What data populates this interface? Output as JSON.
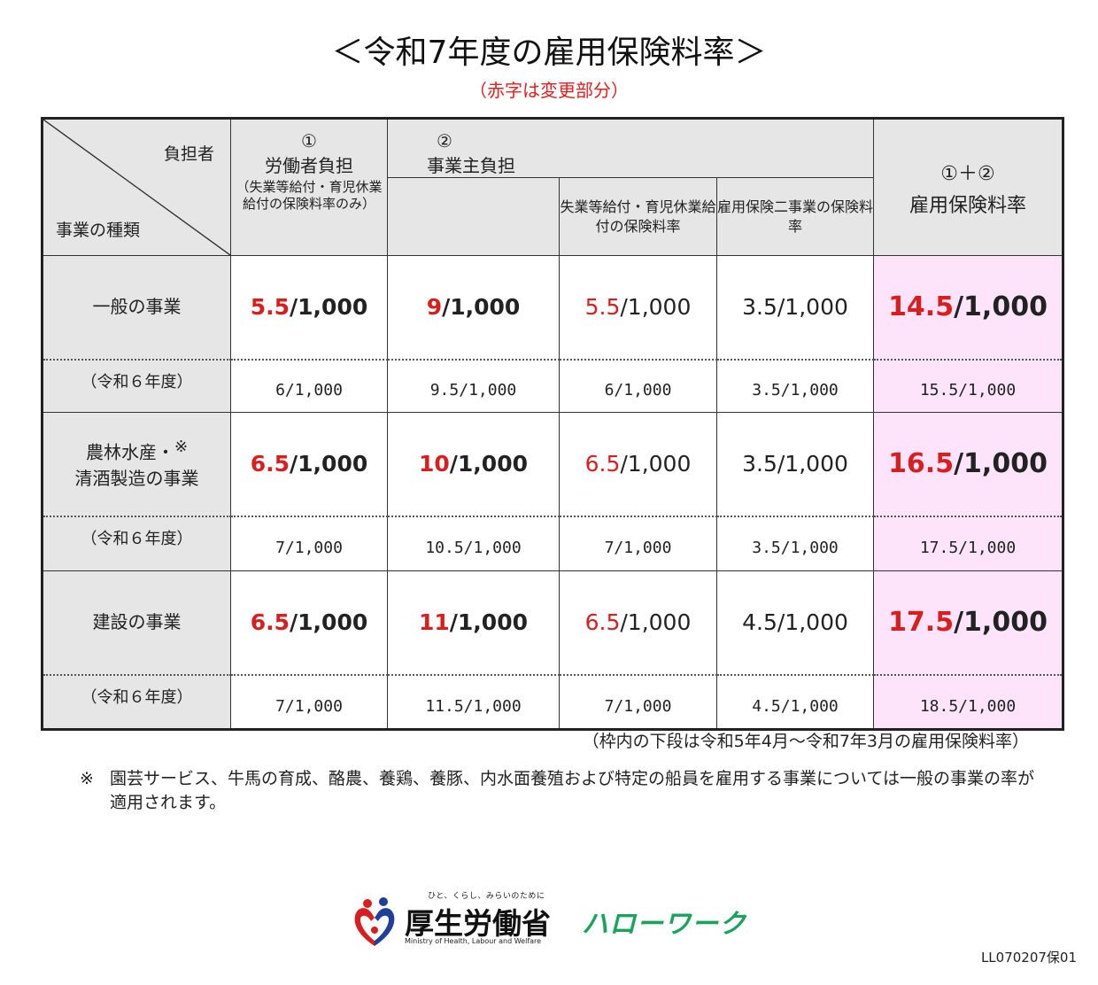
{
  "title": "＜令和7年度の雇用保険料率＞",
  "subtitle": "（赤字は変更部分）",
  "header": {
    "burden_label": "負担者",
    "business_label": "事業の種類",
    "worker_num": "①",
    "worker_title": "労働者負担",
    "worker_note": "（失業等給付・育児休業給付の保険料率のみ）",
    "employer_num": "②",
    "employer_title": "事業主負担",
    "employer_sub1": "失業等給付・育児休業給付の保険料率",
    "employer_sub2": "雇用保険二事業の保険料率",
    "total_num": "①＋②",
    "total_title": "雇用保険料率"
  },
  "rows": [
    {
      "category": "一般の事業",
      "worker": {
        "num": "5.5",
        "den": "/1,000"
      },
      "employer": {
        "num": "9",
        "den": "/1,000"
      },
      "emp_benefit": {
        "num": "5.5",
        "den": "/1,000"
      },
      "emp_two": "3.5/1,000",
      "total": {
        "num": "14.5",
        "den": "/1,000"
      },
      "prev_label": "（令和６年度）",
      "prev": [
        "6/1,000",
        "9.5/1,000",
        "6/1,000",
        "3.5/1,000",
        "15.5/1,000"
      ]
    },
    {
      "category_line1": "農林水産・",
      "category_mark": "※",
      "category_line2": "清酒製造の事業",
      "worker": {
        "num": "6.5",
        "den": "/1,000"
      },
      "employer": {
        "num": "10",
        "den": "/1,000"
      },
      "emp_benefit": {
        "num": "6.5",
        "den": "/1,000"
      },
      "emp_two": "3.5/1,000",
      "total": {
        "num": "16.5",
        "den": "/1,000"
      },
      "prev_label": "（令和６年度）",
      "prev": [
        "7/1,000",
        "10.5/1,000",
        "7/1,000",
        "3.5/1,000",
        "17.5/1,000"
      ]
    },
    {
      "category": "建設の事業",
      "worker": {
        "num": "6.5",
        "den": "/1,000"
      },
      "employer": {
        "num": "11",
        "den": "/1,000"
      },
      "emp_benefit": {
        "num": "6.5",
        "den": "/1,000"
      },
      "emp_two": "4.5/1,000",
      "total": {
        "num": "17.5",
        "den": "/1,000"
      },
      "prev_label": "（令和６年度）",
      "prev": [
        "7/1,000",
        "11.5/1,000",
        "7/1,000",
        "4.5/1,000",
        "18.5/1,000"
      ]
    }
  ],
  "period_note": "（枠内の下段は令和5年4月～令和7年3月の雇用保険料率）",
  "footnote_mark": "※",
  "footnote": "園芸サービス、牛馬の育成、酪農、養鶏、養豚、内水面養殖および特定の船員を雇用する事業については一般の事業の率が適用されます。",
  "logo": {
    "tagline": "ひと、くらし、みらいのために",
    "ministry": "厚生労働省",
    "ministry_en": "Ministry of Health, Labour and Welfare",
    "hellowork": "ハローワーク"
  },
  "doc_code": "LL070207保01",
  "colors": {
    "changed": "#d81e1e",
    "header_bg": "#e6e6e6",
    "total_bg": "#fde4fb",
    "hellowork": "#1aa35b"
  }
}
